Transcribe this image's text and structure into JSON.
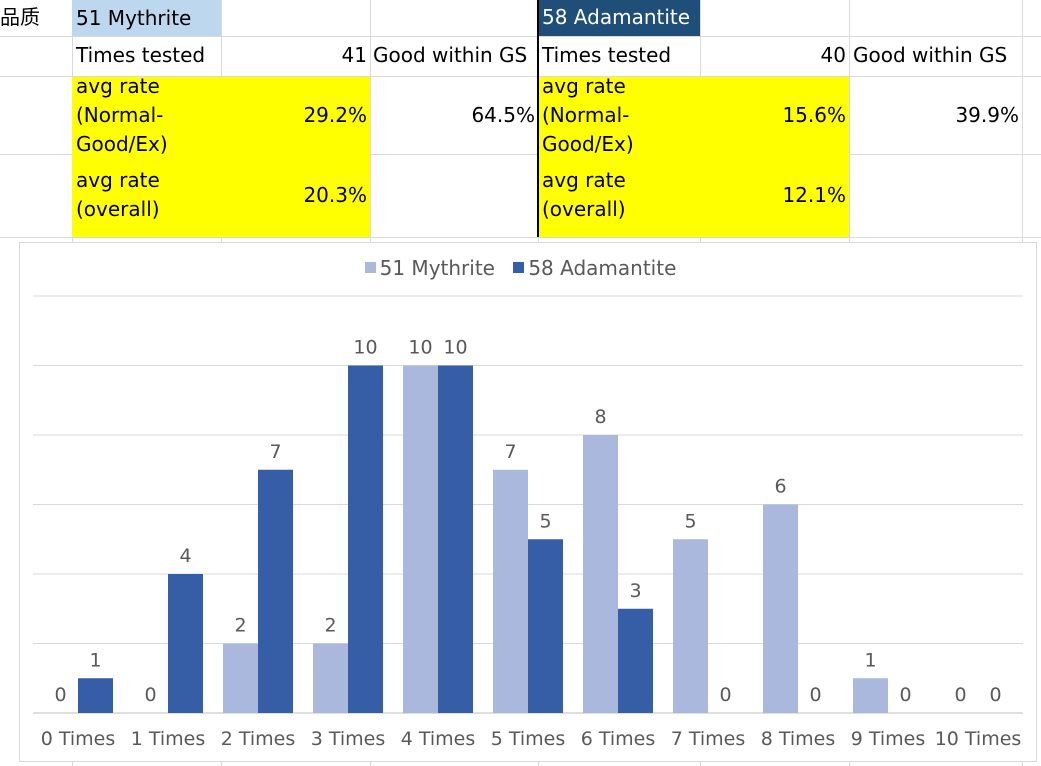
{
  "spreadsheet": {
    "col0_header": "品质",
    "block_a": {
      "title": "51 Mythrite",
      "times_tested_label": "Times tested",
      "times_tested_value": "41",
      "good_within_label": "Good within GS",
      "avg_normal_label": "avg rate (Normal-Good/Ex)",
      "avg_normal_value": "29.2%",
      "good_within_value": "64.5%",
      "avg_overall_label": "avg rate (overall)",
      "avg_overall_value": "20.3%"
    },
    "block_b": {
      "title": "58 Adamantite",
      "times_tested_label": "Times tested",
      "times_tested_value": "40",
      "good_within_label": "Good within GS",
      "avg_normal_label": "avg rate (Normal-Good/Ex)",
      "avg_normal_value": "15.6%",
      "good_within_value": "39.9%",
      "avg_overall_label": "avg rate (overall)",
      "avg_overall_value": "12.1%"
    }
  },
  "chart_data": {
    "type": "bar",
    "categories": [
      "0 Times",
      "1 Times",
      "2 Times",
      "3 Times",
      "4 Times",
      "5 Times",
      "6 Times",
      "7 Times",
      "8 Times",
      "9 Times",
      "10 Times"
    ],
    "series": [
      {
        "name": "51 Mythrite",
        "values": [
          0,
          0,
          2,
          2,
          10,
          7,
          8,
          5,
          6,
          1,
          0
        ],
        "color": "#a9b8dc"
      },
      {
        "name": "58 Adamantite",
        "values": [
          1,
          4,
          7,
          10,
          10,
          5,
          3,
          0,
          0,
          0,
          0
        ],
        "color": "#355ea6"
      }
    ],
    "ylim": [
      0,
      12
    ],
    "grid": true,
    "legend": "top",
    "data_labels": true
  }
}
